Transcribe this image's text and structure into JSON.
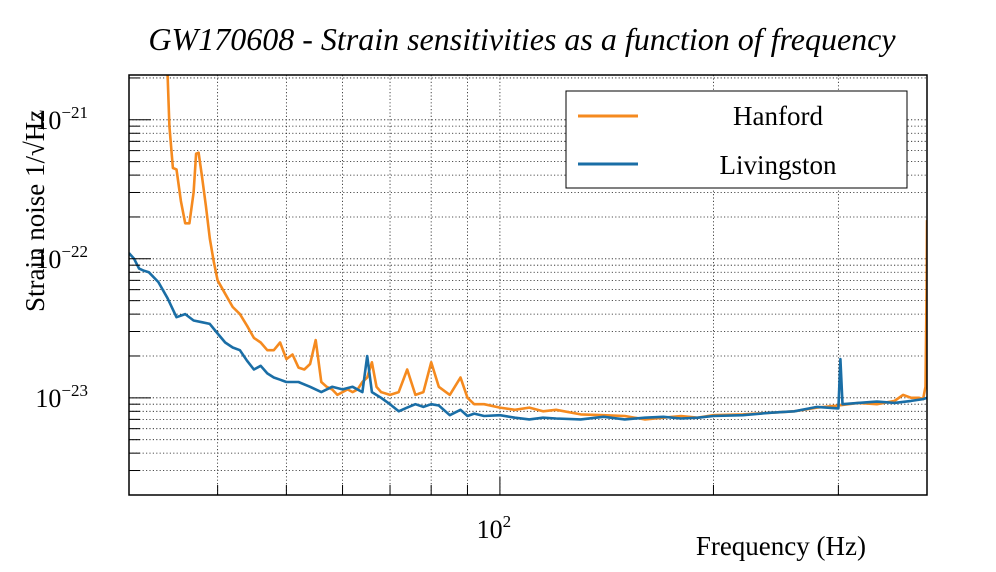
{
  "chart_data": {
    "type": "line",
    "title": "GW170608 - Strain sensitivities as a function of frequency",
    "xlabel": "Frequency (Hz)",
    "ylabel": "Strain noise 1/√Hz",
    "xscale": "log",
    "yscale": "log",
    "xlim": [
      30,
      400
    ],
    "ylim": [
      2e-24,
      2.1e-21
    ],
    "grid": true,
    "legend_position": "top-right",
    "x_tick_labels": [
      {
        "base": "10",
        "exp": "2",
        "value": 100
      }
    ],
    "y_tick_labels": [
      {
        "base": "10",
        "exp": "−21",
        "value": 1e-21
      },
      {
        "base": "10",
        "exp": "−22",
        "value": 1e-22
      },
      {
        "base": "10",
        "exp": "−23",
        "value": 1e-23
      }
    ],
    "series": [
      {
        "name": "Hanford",
        "color": "#f58a1f",
        "x": [
          34.0,
          34.2,
          34.6,
          35.0,
          35.5,
          36.0,
          36.5,
          37.0,
          37.3,
          37.6,
          38.0,
          38.5,
          39.0,
          39.5,
          40.0,
          41.0,
          42.0,
          43.0,
          44.0,
          45.0,
          46.0,
          47.0,
          48.0,
          49.0,
          50.0,
          51.0,
          52.0,
          53.0,
          54.0,
          55.0,
          56.0,
          57.0,
          58.0,
          59.0,
          60.0,
          61.0,
          62.0,
          63.0,
          64.0,
          65.0,
          66.0,
          67.0,
          68.0,
          70.0,
          72.0,
          74.0,
          76.0,
          78.0,
          80.0,
          82.0,
          85.0,
          88.0,
          90.0,
          92.0,
          95.0,
          100.0,
          105.0,
          110.0,
          115.0,
          120.0,
          130.0,
          140.0,
          150.0,
          160.0,
          170.0,
          180.0,
          190.0,
          200.0,
          220.0,
          240.0,
          260.0,
          280.0,
          300.0,
          320.0,
          340.0,
          360.0,
          370.0,
          380.0,
          390.0,
          395.0,
          398.0,
          399.5,
          400.0
        ],
        "y": [
          2.1e-21,
          9e-22,
          4.5e-22,
          4.4e-22,
          2.6e-22,
          1.8e-22,
          1.8e-22,
          3e-22,
          5.7e-22,
          5.8e-22,
          4e-22,
          2.4e-22,
          1.4e-22,
          9.5e-23,
          7e-23,
          5.6e-23,
          4.5e-23,
          4e-23,
          3.3e-23,
          2.7e-23,
          2.5e-23,
          2.2e-23,
          2.2e-23,
          2.5e-23,
          1.9e-23,
          2.05e-23,
          1.65e-23,
          1.6e-23,
          1.75e-23,
          2.6e-23,
          1.3e-23,
          1.2e-23,
          1.15e-23,
          1.05e-23,
          1.1e-23,
          1.15e-23,
          1.1e-23,
          1.15e-23,
          1.3e-23,
          1.4e-23,
          1.8e-23,
          1.2e-23,
          1.1e-23,
          1.05e-23,
          1.1e-23,
          1.6e-23,
          1.05e-23,
          1.1e-23,
          1.8e-23,
          1.2e-23,
          1.05e-23,
          1.4e-23,
          1e-23,
          9e-24,
          9e-24,
          8.5e-24,
          8.2e-24,
          8.5e-24,
          8e-24,
          8.2e-24,
          7.6e-24,
          7.5e-24,
          7.4e-24,
          7e-24,
          7.2e-24,
          7.4e-24,
          7.2e-24,
          7.5e-24,
          7.6e-24,
          7.8e-24,
          8e-24,
          8.5e-24,
          8.8e-24,
          9.2e-24,
          9e-24,
          9.5e-24,
          1.05e-23,
          1e-23,
          1e-23,
          9.8e-24,
          1.2e-23,
          6e-23,
          1.9e-22
        ]
      },
      {
        "name": "Livingston",
        "color": "#1a6ea6",
        "x": [
          30.0,
          30.5,
          31.0,
          31.5,
          32.0,
          33.0,
          34.0,
          35.0,
          36.0,
          37.0,
          38.0,
          39.0,
          40.0,
          41.0,
          42.0,
          43.0,
          44.0,
          45.0,
          46.0,
          47.0,
          48.0,
          49.0,
          50.0,
          52.0,
          54.0,
          56.0,
          58.0,
          60.0,
          62.0,
          64.0,
          65.0,
          66.0,
          68.0,
          70.0,
          72.0,
          74.0,
          76.0,
          78.0,
          80.0,
          82.0,
          85.0,
          88.0,
          90.0,
          92.0,
          95.0,
          100.0,
          105.0,
          110.0,
          115.0,
          120.0,
          130.0,
          140.0,
          150.0,
          160.0,
          170.0,
          180.0,
          190.0,
          200.0,
          220.0,
          240.0,
          260.0,
          280.0,
          300.0,
          302.0,
          304.0,
          320.0,
          340.0,
          360.0,
          380.0,
          395.0,
          400.0
        ],
        "y": [
          1.1e-22,
          1e-22,
          8.5e-23,
          8.2e-23,
          8e-23,
          6.8e-23,
          5.2e-23,
          3.8e-23,
          4e-23,
          3.6e-23,
          3.5e-23,
          3.4e-23,
          2.9e-23,
          2.5e-23,
          2.3e-23,
          2.2e-23,
          1.85e-23,
          1.6e-23,
          1.7e-23,
          1.5e-23,
          1.4e-23,
          1.35e-23,
          1.3e-23,
          1.3e-23,
          1.2e-23,
          1.1e-23,
          1.2e-23,
          1.15e-23,
          1.2e-23,
          1.1e-23,
          2e-23,
          1.1e-23,
          1e-23,
          9e-24,
          8e-24,
          8.5e-24,
          9e-24,
          8.6e-24,
          9e-24,
          8.8e-24,
          7.5e-24,
          8.2e-24,
          7.4e-24,
          7.7e-24,
          7.4e-24,
          7.5e-24,
          7.2e-24,
          7e-24,
          7.2e-24,
          7.1e-24,
          7e-24,
          7.3e-24,
          7e-24,
          7.2e-24,
          7.3e-24,
          7.1e-24,
          7.2e-24,
          7.4e-24,
          7.5e-24,
          7.8e-24,
          8e-24,
          8.6e-24,
          8.4e-24,
          1.9e-23,
          9e-24,
          9.2e-24,
          9.4e-24,
          9.2e-24,
          9.5e-24,
          9.8e-24,
          1e-23
        ]
      }
    ]
  }
}
